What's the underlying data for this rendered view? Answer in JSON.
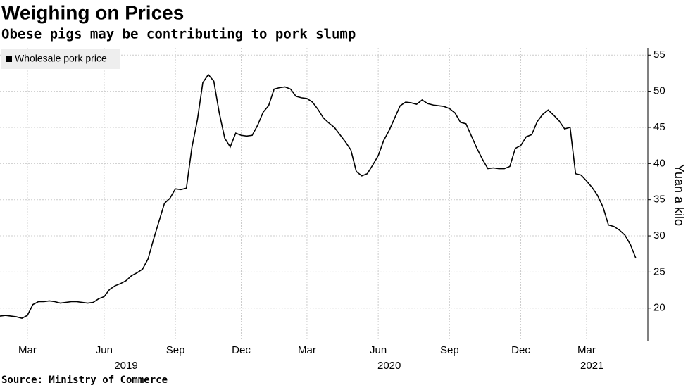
{
  "chart_data": {
    "type": "line",
    "title": "Weighing on Prices",
    "subtitle": "Obese pigs may be contributing to pork slump",
    "source": "Source: Ministry of Commerce",
    "y_label": "Yuan a kilo",
    "series": [
      {
        "name": "Wholesale pork price",
        "color": "#000000",
        "values": [
          18.9,
          19.0,
          18.9,
          18.8,
          18.6,
          19.0,
          20.5,
          20.9,
          20.9,
          21.0,
          20.9,
          20.7,
          20.8,
          20.9,
          20.9,
          20.8,
          20.7,
          20.8,
          21.3,
          21.6,
          22.6,
          23.1,
          23.4,
          23.8,
          24.5,
          24.9,
          25.4,
          26.8,
          29.5,
          32.0,
          34.5,
          35.2,
          36.5,
          36.4,
          36.6,
          42.2,
          46.0,
          51.2,
          52.3,
          51.4,
          47.0,
          43.5,
          42.3,
          44.2,
          43.9,
          43.8,
          43.9,
          45.3,
          47.1,
          48.0,
          50.3,
          50.5,
          50.6,
          50.3,
          49.3,
          49.1,
          49.0,
          48.5,
          47.5,
          46.3,
          45.6,
          45.0,
          44.0,
          43.0,
          41.9,
          38.9,
          38.3,
          38.6,
          39.8,
          41.1,
          43.2,
          44.6,
          46.3,
          48.0,
          48.5,
          48.4,
          48.2,
          48.8,
          48.3,
          48.1,
          48.0,
          47.9,
          47.6,
          47.0,
          45.7,
          45.5,
          43.8,
          42.1,
          40.6,
          39.3,
          39.4,
          39.3,
          39.3,
          39.6,
          42.1,
          42.5,
          43.7,
          44.0,
          45.8,
          46.8,
          47.4,
          46.7,
          45.9,
          44.8,
          45.0,
          38.6,
          38.4,
          37.6,
          36.7,
          35.6,
          34.0,
          31.5,
          31.3,
          30.8,
          30.1,
          28.8,
          26.9
        ]
      }
    ],
    "xlim": [
      0,
      116
    ],
    "xticks": [
      {
        "value": 5,
        "label": "Mar"
      },
      {
        "value": 19,
        "label": "Jun"
      },
      {
        "value": 32,
        "label": "Sep"
      },
      {
        "value": 44,
        "label": "Dec"
      },
      {
        "value": 56,
        "label": "Mar"
      },
      {
        "value": 69,
        "label": "Jun"
      },
      {
        "value": 82,
        "label": "Sep"
      },
      {
        "value": 95,
        "label": "Dec"
      },
      {
        "value": 107,
        "label": "Mar"
      }
    ],
    "year_ticks": [
      {
        "value": 23,
        "label": "2019"
      },
      {
        "value": 71,
        "label": "2020"
      },
      {
        "value": 108,
        "label": "2021"
      }
    ],
    "ylim": [
      15.4,
      56
    ],
    "yticks": [
      20,
      25,
      30,
      35,
      40,
      45,
      50,
      55
    ],
    "grid": true,
    "legend": "top-left"
  }
}
